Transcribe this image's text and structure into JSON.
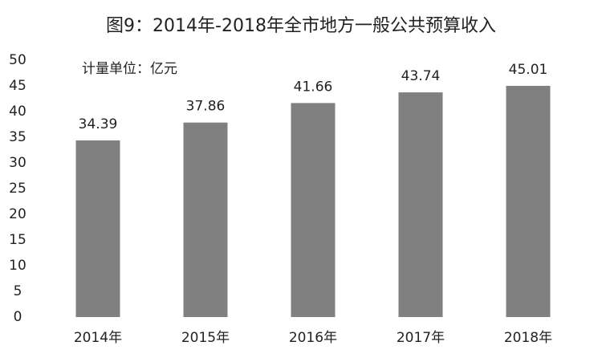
{
  "chart_data": {
    "type": "bar",
    "title": "图9：2014年-2018年全市地方一般公共预算收入",
    "annotation": "计量单位：亿元",
    "categories": [
      "2014年",
      "2015年",
      "2016年",
      "2017年",
      "2018年"
    ],
    "values": [
      34.39,
      37.86,
      41.66,
      43.74,
      45.01
    ],
    "color": "#808080",
    "ylim": [
      0,
      50
    ],
    "yticks": [
      0,
      5,
      10,
      15,
      20,
      25,
      30,
      35,
      40,
      45,
      50
    ],
    "grid": false
  }
}
